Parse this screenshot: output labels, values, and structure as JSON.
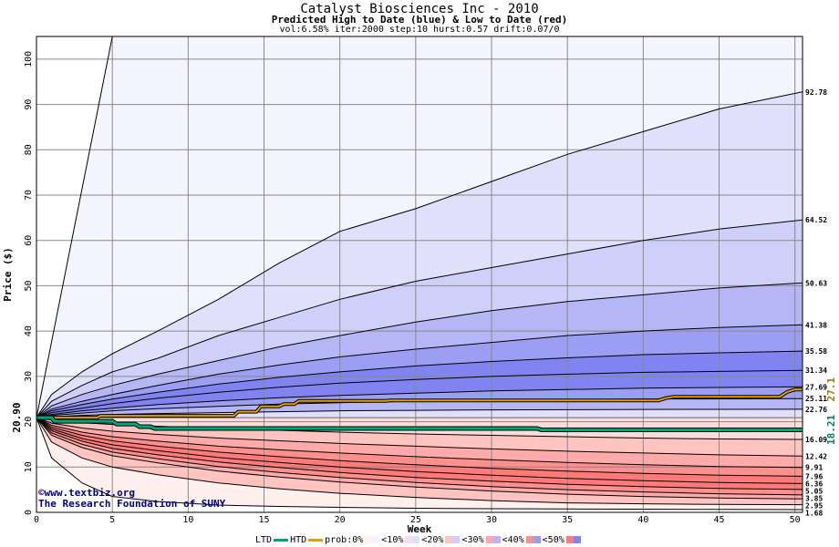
{
  "title": "Catalyst Biosciences Inc - 2010",
  "subtitle": "Predicted High to Date (blue) &  Low to Date (red)",
  "params": "vol:6.58% iter:2000 step:10 hurst:0.57 drift:0.07/0",
  "watermark": {
    "line1": "©www.textbiz.org",
    "line2": "The Research Foundation of SUNY"
  },
  "legend": {
    "ltd": "LTD",
    "htd": "HTD",
    "prob": "prob:0%",
    "b10": "<10%",
    "b20": "<20%",
    "b30": "<30%",
    "b40": "<40%",
    "b50": "<50%",
    "lt": "<"
  },
  "colors": {
    "ltd": "#00a878",
    "htd": "#e0a000",
    "grid": "#888888",
    "high_bands": [
      "#f4f4ff",
      "#e0e0fc",
      "#cfd0fa",
      "#b4b6f6",
      "#9c9ef4",
      "#8083f0"
    ],
    "low_bands": [
      "#fff0ee",
      "#ffdcdc",
      "#ffc4c0",
      "#ffaaaa",
      "#ff8f8c",
      "#ff7a78"
    ]
  },
  "chart_data": {
    "type": "area",
    "title": "Catalyst Biosciences Inc - 2010",
    "xlabel": "Week",
    "ylabel": "Price ($)",
    "xlim": [
      0,
      50.5
    ],
    "ylim": [
      0,
      105
    ],
    "xticks": [
      0,
      5,
      10,
      15,
      20,
      25,
      30,
      35,
      40,
      45,
      50
    ],
    "yticks": [
      0,
      10,
      20,
      30,
      40,
      50,
      60,
      70,
      80,
      90,
      100
    ],
    "start_price": "20.90",
    "x": [
      0,
      1,
      3,
      5,
      8,
      12,
      16,
      20,
      25,
      30,
      35,
      40,
      45,
      50.5
    ],
    "high_series": [
      {
        "end_label": "92.78",
        "values": [
          20.9,
          26,
          31,
          35,
          40,
          47,
          55,
          62,
          67,
          73,
          79,
          84,
          89,
          92.78
        ]
      },
      {
        "end_label": "64.52",
        "values": [
          20.9,
          24.5,
          28,
          31,
          34,
          39,
          43,
          47,
          51,
          54,
          57,
          60,
          62.5,
          64.52
        ]
      },
      {
        "end_label": "50.63",
        "values": [
          20.9,
          23.5,
          26,
          28,
          30.5,
          33.5,
          36.5,
          39,
          42,
          44.5,
          46.5,
          48,
          49.5,
          50.63
        ]
      },
      {
        "end_label": "41.38",
        "values": [
          20.9,
          22.8,
          24.5,
          26,
          28,
          30.5,
          32.5,
          34.3,
          36,
          37.5,
          39,
          40,
          40.8,
          41.38
        ]
      },
      {
        "end_label": "35.58",
        "values": [
          20.9,
          22.4,
          23.8,
          25,
          26.5,
          28.3,
          29.8,
          31,
          32.3,
          33.3,
          34.1,
          34.8,
          35.2,
          35.58
        ]
      },
      {
        "end_label": "31.34",
        "values": [
          20.9,
          22,
          23,
          24,
          25.2,
          26.5,
          27.6,
          28.5,
          29.3,
          30,
          30.5,
          30.9,
          31.1,
          31.34
        ]
      },
      {
        "end_label": "27.69",
        "values": [
          20.9,
          21.6,
          22.4,
          23,
          23.8,
          24.6,
          25.3,
          25.8,
          26.3,
          26.8,
          27.1,
          27.4,
          27.55,
          27.69
        ]
      },
      {
        "end_label": "25.11",
        "values": [
          20.9,
          21.4,
          21.9,
          22.4,
          22.9,
          23.4,
          23.9,
          24.2,
          24.5,
          24.7,
          24.9,
          25,
          25.05,
          25.11
        ]
      },
      {
        "end_label": "22.76",
        "values": [
          20.9,
          21.1,
          21.4,
          21.6,
          21.8,
          22,
          22.2,
          22.4,
          22.5,
          22.6,
          22.65,
          22.7,
          22.73,
          22.76
        ]
      }
    ],
    "low_series": [
      {
        "end_label": "16.09",
        "values": [
          20.9,
          20.4,
          19.8,
          19.4,
          19,
          18.5,
          18.1,
          17.7,
          17.3,
          17,
          16.7,
          16.4,
          16.2,
          16.09
        ]
      },
      {
        "end_label": "12.42",
        "values": [
          20.9,
          19.7,
          18.6,
          17.9,
          17.2,
          16.4,
          15.8,
          15.2,
          14.6,
          14,
          13.5,
          13.1,
          12.7,
          12.42
        ]
      },
      {
        "end_label": "9.91",
        "values": [
          20.9,
          19.2,
          17.7,
          16.7,
          15.7,
          14.6,
          13.8,
          13.1,
          12.3,
          11.6,
          11,
          10.5,
          10.1,
          9.91
        ]
      },
      {
        "end_label": "7.96",
        "values": [
          20.9,
          18.8,
          17,
          15.8,
          14.6,
          13.3,
          12.3,
          11.4,
          10.5,
          9.7,
          9.1,
          8.6,
          8.2,
          7.96
        ]
      },
      {
        "end_label": "6.36",
        "values": [
          20.9,
          18.4,
          16.3,
          14.9,
          13.6,
          12.1,
          11,
          10,
          9,
          8.2,
          7.5,
          7,
          6.6,
          6.36
        ]
      },
      {
        "end_label": "5.05",
        "values": [
          20.9,
          18,
          15.7,
          14.1,
          12.7,
          11.1,
          9.9,
          8.8,
          7.7,
          6.9,
          6.2,
          5.7,
          5.3,
          5.05
        ]
      },
      {
        "end_label": "3.85",
        "values": [
          20.9,
          17.5,
          15,
          13.3,
          11.8,
          10.1,
          8.8,
          7.7,
          6.6,
          5.7,
          5,
          4.5,
          4.1,
          3.85
        ]
      },
      {
        "end_label": "2.95",
        "values": [
          20.9,
          17,
          14.3,
          12.5,
          10.9,
          9.1,
          7.8,
          6.7,
          5.6,
          4.7,
          4,
          3.5,
          3.15,
          2.95
        ]
      },
      {
        "end_label": "1.68",
        "values": [
          20.9,
          15.5,
          12,
          10,
          8.3,
          6.5,
          5.2,
          4.2,
          3.3,
          2.6,
          2.1,
          1.9,
          1.75,
          1.68
        ]
      }
    ],
    "outer_low": [
      20.9,
      12,
      6.5,
      3.5,
      2.4,
      1.6,
      1.3,
      1.1,
      0.9,
      0.8,
      0.75,
      0.7,
      0.65,
      0.6
    ],
    "max_line": {
      "x": [
        0,
        5,
        5.5
      ],
      "values": [
        20.9,
        105,
        105
      ]
    },
    "htd_path": {
      "end_label": "27.1",
      "x": [
        0,
        4,
        4.2,
        13,
        13.3,
        14.5,
        14.8,
        16,
        16.3,
        17,
        17.3,
        23,
        23.3,
        41,
        41.5,
        42,
        49,
        49.5,
        50,
        50.5
      ],
      "values": [
        20.9,
        20.9,
        21.3,
        21.3,
        22.2,
        22.2,
        23.4,
        23.4,
        23.9,
        23.9,
        24.6,
        24.6,
        24.7,
        24.7,
        25.2,
        25.5,
        25.5,
        26.6,
        27.1,
        27.1
      ]
    },
    "ltd_path": {
      "end_label": "18.21",
      "x": [
        0,
        1,
        1.2,
        5,
        5.3,
        6.5,
        6.8,
        7.5,
        7.8,
        33,
        33.3,
        50.5
      ],
      "values": [
        20.9,
        20.9,
        20.1,
        20.1,
        19.5,
        19.5,
        18.9,
        18.9,
        18.5,
        18.5,
        18.21,
        18.21
      ]
    }
  }
}
